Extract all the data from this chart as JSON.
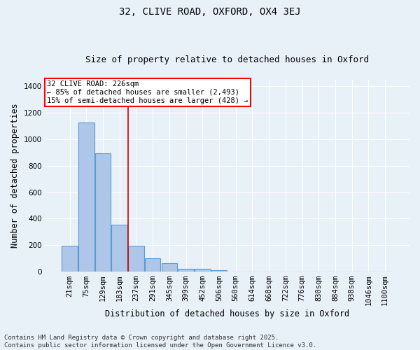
{
  "title1": "32, CLIVE ROAD, OXFORD, OX4 3EJ",
  "title2": "Size of property relative to detached houses in Oxford",
  "xlabel": "Distribution of detached houses by size in Oxford",
  "ylabel": "Number of detached properties",
  "bar_values": [
    193,
    1125,
    893,
    355,
    193,
    98,
    62,
    20,
    18,
    10,
    0,
    0,
    0,
    0,
    0,
    0,
    0,
    0,
    0,
    0
  ],
  "bin_labels": [
    "21sqm",
    "75sqm",
    "129sqm",
    "183sqm",
    "237sqm",
    "291sqm",
    "345sqm",
    "399sqm",
    "452sqm",
    "506sqm",
    "560sqm",
    "614sqm",
    "668sqm",
    "722sqm",
    "776sqm",
    "830sqm",
    "884sqm",
    "938sqm",
    "1046sqm",
    "1100sqm"
  ],
  "bar_color": "#aec6e8",
  "bar_edge_color": "#5b9bd5",
  "vline_x": 3.5,
  "vline_color": "#cc0000",
  "annotation_box_text": "32 CLIVE ROAD: 226sqm\n← 85% of detached houses are smaller (2,493)\n15% of semi-detached houses are larger (428) →",
  "ylim": [
    0,
    1450
  ],
  "yticks": [
    0,
    200,
    400,
    600,
    800,
    1000,
    1200,
    1400
  ],
  "bg_color": "#e8f0f8",
  "grid_color": "#ffffff",
  "footnote": "Contains HM Land Registry data © Crown copyright and database right 2025.\nContains public sector information licensed under the Open Government Licence v3.0.",
  "title_fontsize": 10,
  "subtitle_fontsize": 9,
  "axis_label_fontsize": 8.5,
  "tick_fontsize": 7.5,
  "annotation_fontsize": 7.5,
  "footnote_fontsize": 6.5
}
